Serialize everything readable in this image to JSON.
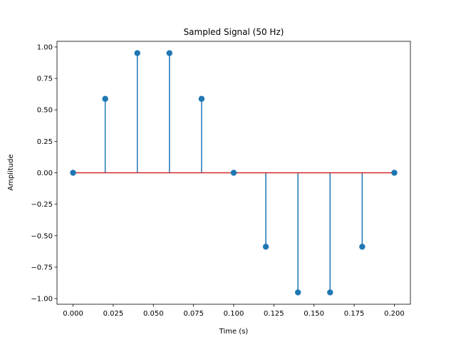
{
  "chart_data": {
    "type": "stem",
    "title": "Sampled Signal (50 Hz)",
    "xlabel": "Time (s)",
    "ylabel": "Amplitude",
    "xlim": [
      -0.01,
      0.21
    ],
    "ylim": [
      -1.045,
      1.045
    ],
    "grid": false,
    "x_ticks": [
      0.0,
      0.025,
      0.05,
      0.075,
      0.1,
      0.125,
      0.15,
      0.175,
      0.2
    ],
    "x_tick_labels": [
      "0.000",
      "0.025",
      "0.050",
      "0.075",
      "0.100",
      "0.125",
      "0.150",
      "0.175",
      "0.200"
    ],
    "y_ticks": [
      1.0,
      0.75,
      0.5,
      0.25,
      0.0,
      -0.25,
      -0.5,
      -0.75,
      -1.0
    ],
    "y_tick_labels": [
      "1.00",
      "0.75",
      "0.50",
      "0.25",
      "0.00",
      "−0.25",
      "−0.50",
      "−0.75",
      "−1.00"
    ],
    "x": [
      0.0,
      0.02,
      0.04,
      0.06,
      0.08,
      0.1,
      0.12,
      0.14,
      0.16,
      0.18,
      0.2
    ],
    "y": [
      0.0,
      0.5878,
      0.9511,
      0.9511,
      0.5878,
      0.0,
      -0.5878,
      -0.9511,
      -0.9511,
      -0.5878,
      0.0
    ],
    "colors": {
      "stem": "#1f77b4",
      "marker": "#1f77b4",
      "baseline": "#d62728"
    }
  }
}
